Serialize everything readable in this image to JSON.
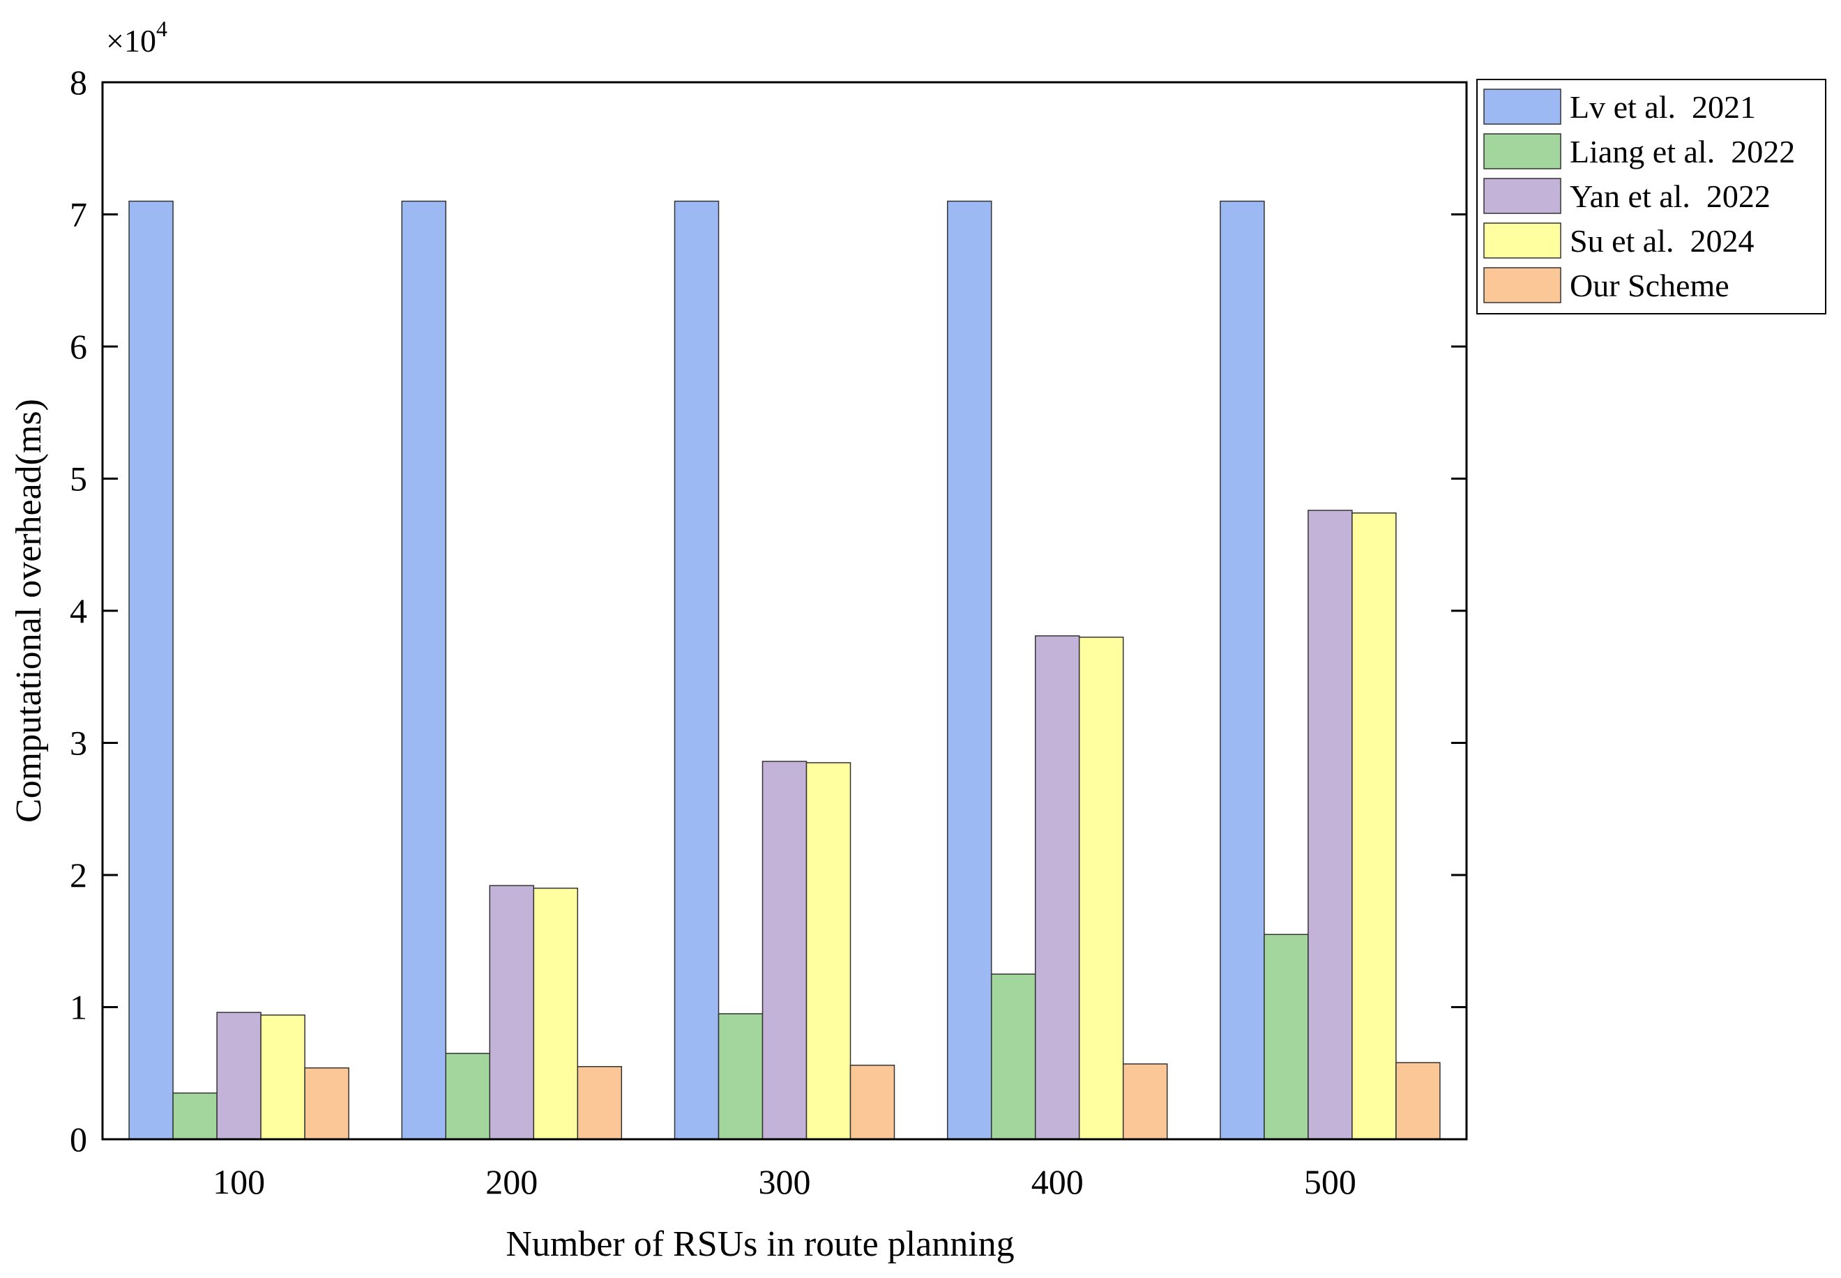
{
  "chart_data": {
    "type": "bar",
    "title": "",
    "xlabel": "Number of RSUs in route planning",
    "ylabel": "Computational overhead(ms)",
    "y_multiplier_text": "×10",
    "y_multiplier_exponent": "4",
    "ylim": [
      0,
      8
    ],
    "yticks": [
      "0",
      "1",
      "2",
      "3",
      "4",
      "5",
      "6",
      "7",
      "8"
    ],
    "categories": [
      "100",
      "200",
      "300",
      "400",
      "500"
    ],
    "legend_position": "outside-top-right",
    "series": [
      {
        "name": "Lv et al.  2021",
        "color": "#9db9f3",
        "values": [
          7.1,
          7.1,
          7.1,
          7.1,
          7.1
        ]
      },
      {
        "name": "Liang et al.  2022",
        "color": "#a3d69c",
        "values": [
          0.35,
          0.65,
          0.95,
          1.25,
          1.55
        ]
      },
      {
        "name": "Yan et al.  2022",
        "color": "#c3b3d8",
        "values": [
          0.96,
          1.92,
          2.86,
          3.81,
          4.76
        ]
      },
      {
        "name": "Su et al.  2024",
        "color": "#ffff9f",
        "values": [
          0.94,
          1.9,
          2.85,
          3.8,
          4.74
        ]
      },
      {
        "name": "Our Scheme",
        "color": "#fbc797",
        "values": [
          0.54,
          0.55,
          0.56,
          0.57,
          0.58
        ]
      }
    ]
  }
}
